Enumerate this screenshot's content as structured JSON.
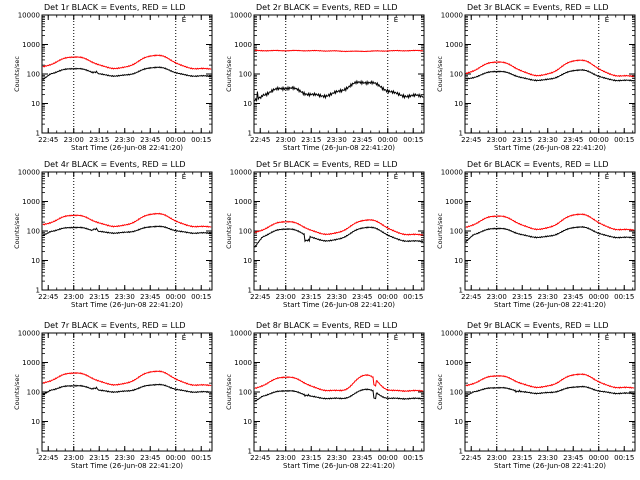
{
  "chart_data": [
    {
      "type": "line",
      "title": "Det 1r BLACK = Events, RED = LLD",
      "xlabel": "Start Time (26-Jun-08 22:41:20)",
      "ylabel": "Counts/sec",
      "flag_label": "E",
      "series": [
        {
          "color": "#000000",
          "shape": "std",
          "base": 85,
          "dip": 60,
          "amp": 2.0,
          "jump": 120
        },
        {
          "color": "#ff0000",
          "shape": "std",
          "base": 150,
          "amp": 2.9
        }
      ]
    },
    {
      "type": "line",
      "title": "Det 2r BLACK = Events, RED = LLD",
      "xlabel": "Start Time (26-Jun-08 22:41:20)",
      "ylabel": "Counts/sec",
      "flag_label": "E",
      "series": [
        {
          "color": "#000000",
          "shape": "det2",
          "base": 18,
          "dip": 11,
          "amp": 3.0
        },
        {
          "color": "#ff0000",
          "shape": "flat",
          "base": 620,
          "amp": 1.0
        }
      ]
    },
    {
      "type": "line",
      "title": "Det 3r BLACK = Events, RED = LLD",
      "xlabel": "Start Time (26-Jun-08 22:41:20)",
      "ylabel": "Counts/sec",
      "flag_label": "E",
      "series": [
        {
          "color": "#000000",
          "shape": "std",
          "base": 60,
          "amp": 2.3
        },
        {
          "color": "#ff0000",
          "shape": "std",
          "base": 85,
          "amp": 3.5
        }
      ]
    },
    {
      "type": "line",
      "title": "Det 4r BLACK = Events, RED = LLD",
      "xlabel": "Start Time (26-Jun-08 22:41:20)",
      "ylabel": "Counts/sec",
      "flag_label": "E",
      "series": [
        {
          "color": "#000000",
          "shape": "std",
          "base": 85,
          "dip": 65,
          "amp": 1.7,
          "jump": 120
        },
        {
          "color": "#ff0000",
          "shape": "std",
          "base": 140,
          "amp": 2.8
        }
      ]
    },
    {
      "type": "line",
      "title": "Det 5r BLACK = Events, RED = LLD",
      "xlabel": "Start Time (26-Jun-08 22:41:20)",
      "ylabel": "Counts/sec",
      "flag_label": "E",
      "series": [
        {
          "color": "#000000",
          "shape": "std",
          "base": 45,
          "dip": 25,
          "amp": 3.0,
          "jump": 50
        },
        {
          "color": "#ff0000",
          "shape": "std",
          "base": 75,
          "amp": 3.2
        }
      ]
    },
    {
      "type": "line",
      "title": "Det 6r BLACK = Events, RED = LLD",
      "xlabel": "Start Time (26-Jun-08 22:41:20)",
      "ylabel": "Counts/sec",
      "flag_label": "E",
      "series": [
        {
          "color": "#000000",
          "shape": "std",
          "base": 60,
          "dip": 40,
          "amp": 2.3
        },
        {
          "color": "#ff0000",
          "shape": "std",
          "base": 110,
          "amp": 3.4
        }
      ]
    },
    {
      "type": "line",
      "title": "Det 7r BLACK = Events, RED = LLD",
      "xlabel": "Start Time (26-Jun-08 22:41:20)",
      "ylabel": "Counts/sec",
      "flag_label": "E",
      "series": [
        {
          "color": "#000000",
          "shape": "std",
          "base": 100,
          "dip": 75,
          "amp": 1.8,
          "jump": 140
        },
        {
          "color": "#ff0000",
          "shape": "std",
          "base": 170,
          "amp": 3.0
        }
      ]
    },
    {
      "type": "line",
      "title": "Det 8r BLACK = Events, RED = LLD",
      "xlabel": "Start Time (26-Jun-08 22:41:20)",
      "ylabel": "Counts/sec",
      "flag_label": "E",
      "series": [
        {
          "color": "#000000",
          "shape": "det8",
          "base": 60,
          "dip": 45,
          "amp": 2.1,
          "jump": 80
        },
        {
          "color": "#ff0000",
          "shape": "det8",
          "base": 110,
          "amp": 3.5
        }
      ]
    },
    {
      "type": "line",
      "title": "Det 9r BLACK = Events, RED = LLD",
      "xlabel": "Start Time (26-Jun-08 22:41:20)",
      "ylabel": "Counts/sec",
      "flag_label": "E",
      "series": [
        {
          "color": "#000000",
          "shape": "std",
          "base": 90,
          "dip": 70,
          "amp": 1.7,
          "jump": 110
        },
        {
          "color": "#ff0000",
          "shape": "std",
          "base": 140,
          "amp": 2.9
        }
      ]
    }
  ],
  "axes": {
    "x_tick_labels": [
      "22:45",
      "23:00",
      "23:15",
      "23:30",
      "23:45",
      "00:00",
      "00:15"
    ],
    "x_ticks_minutes": [
      3.67,
      18.67,
      33.67,
      48.67,
      63.67,
      78.67,
      93.67
    ],
    "x_range_minutes": [
      0,
      100
    ],
    "y_tick_labels": [
      "1",
      "10",
      "100",
      "1000",
      "10000"
    ],
    "y_range": [
      1,
      10000
    ],
    "y_scale": "log",
    "vlines_minutes": [
      18.67,
      78.67
    ],
    "flag_minute": 83.5
  }
}
